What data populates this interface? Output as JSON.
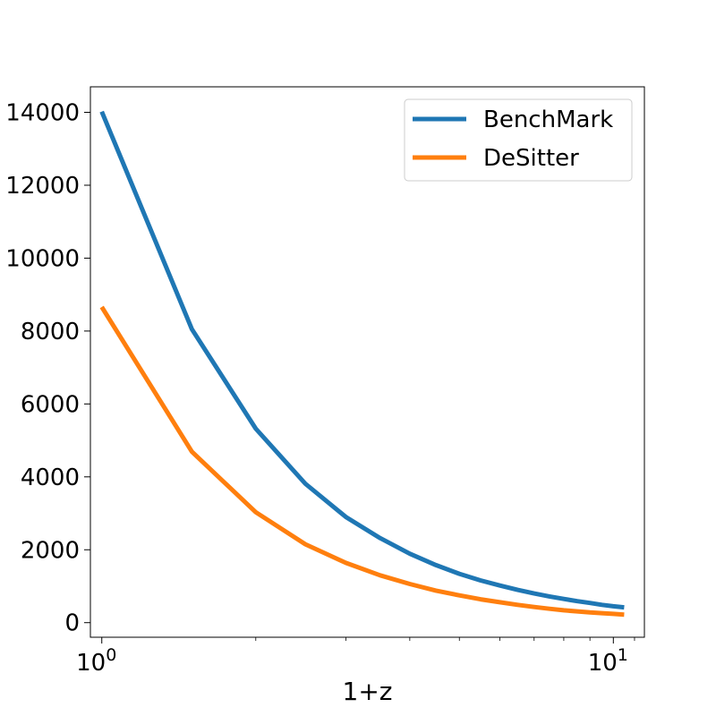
{
  "chart_data": {
    "type": "line",
    "xlabel": "1+z",
    "ylabel": "",
    "x_scale": "log",
    "xlim": [
      0.95,
      11.5
    ],
    "ylim": [
      -400,
      14700
    ],
    "x_ticks": [
      {
        "value": 1,
        "base": "10",
        "exp": "0"
      },
      {
        "value": 10,
        "base": "10",
        "exp": "1"
      }
    ],
    "y_ticks": [
      0,
      2000,
      4000,
      6000,
      8000,
      10000,
      12000,
      14000
    ],
    "y_tick_labels": [
      "0",
      "2000",
      "4000",
      "6000",
      "8000",
      "10000",
      "12000",
      "14000"
    ],
    "legend": {
      "position": "top-right"
    },
    "x": [
      1,
      1.5,
      2,
      2.5,
      3,
      3.5,
      4,
      4.5,
      5,
      5.5,
      6,
      6.5,
      7,
      7.5,
      8,
      8.5,
      9,
      9.5,
      10,
      10.5
    ],
    "series": [
      {
        "name": "BenchMark",
        "color": "#1f77b4",
        "values": [
          14020,
          8050,
          5320,
          3810,
          2900,
          2320,
          1890,
          1580,
          1340,
          1160,
          1020,
          900,
          800,
          720,
          650,
          590,
          540,
          490,
          450,
          420
        ]
      },
      {
        "name": "DeSitter",
        "color": "#ff7f0e",
        "values": [
          8660,
          4690,
          3030,
          2150,
          1640,
          1300,
          1060,
          880,
          750,
          640,
          560,
          490,
          430,
          380,
          340,
          310,
          280,
          260,
          240,
          220
        ]
      }
    ]
  }
}
